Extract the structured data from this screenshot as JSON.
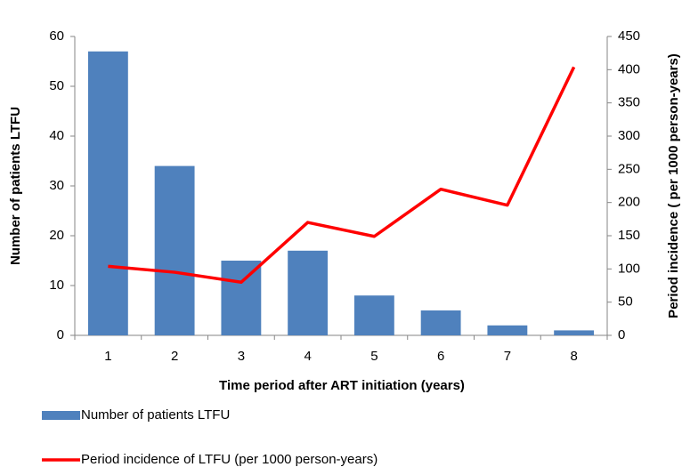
{
  "chart_data": {
    "type": "bar",
    "x_label": "Time period after ART initiation (years)",
    "y_label": "Number of patients LTFU",
    "y2_label": "Period incidence ( per 1000 person-years)",
    "categories": [
      "1",
      "2",
      "3",
      "4",
      "5",
      "6",
      "7",
      "8"
    ],
    "series": [
      {
        "name": "Number of patients LTFU",
        "type": "bar",
        "color": "#4f81bd",
        "values": [
          57,
          34,
          15,
          17,
          8,
          5,
          2,
          1
        ]
      },
      {
        "name": "Period incidence of LTFU (per 1000 person-years)",
        "type": "line",
        "axis": "y2",
        "color": "#ff0000",
        "values": [
          104,
          95,
          80,
          170,
          149,
          220,
          196,
          404
        ]
      }
    ],
    "ylim": [
      0,
      60
    ],
    "yticks": [
      0,
      10,
      20,
      30,
      40,
      50,
      60
    ],
    "y2lim": [
      0,
      450
    ],
    "y2ticks": [
      0,
      50,
      100,
      150,
      200,
      250,
      300,
      350,
      400,
      450
    ],
    "grid": false
  }
}
